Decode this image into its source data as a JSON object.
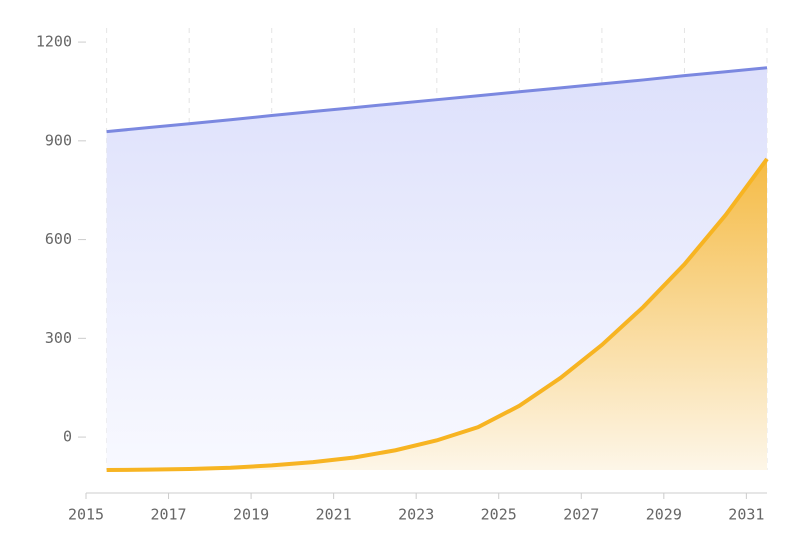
{
  "chart_data": {
    "type": "area",
    "x": [
      2015.5,
      2016.5,
      2017.5,
      2018.5,
      2019.5,
      2020.5,
      2021.5,
      2022.5,
      2023.5,
      2024.5,
      2025.5,
      2026.5,
      2027.5,
      2028.5,
      2029.5,
      2030.5,
      2031.5
    ],
    "series": [
      {
        "color": "#7b88e0",
        "values": [
          928,
          940,
          952,
          964,
          977,
          989,
          1001,
          1013,
          1025,
          1037,
          1049,
          1061,
          1073,
          1085,
          1098,
          1110,
          1122
        ]
      },
      {
        "color": "#f7b422",
        "values": [
          -100,
          -99,
          -97,
          -93,
          -86,
          -76,
          -62,
          -40,
          -10,
          30,
          95,
          180,
          280,
          395,
          525,
          675,
          845
        ]
      }
    ],
    "xlim": [
      2015,
      2031.5
    ],
    "xticks": [
      2015,
      2017,
      2019,
      2021,
      2023,
      2025,
      2027,
      2029,
      2031
    ],
    "ylim": [
      -100,
      1250
    ],
    "yticks": [
      0,
      300,
      600,
      900,
      1200
    ],
    "grid": true
  }
}
